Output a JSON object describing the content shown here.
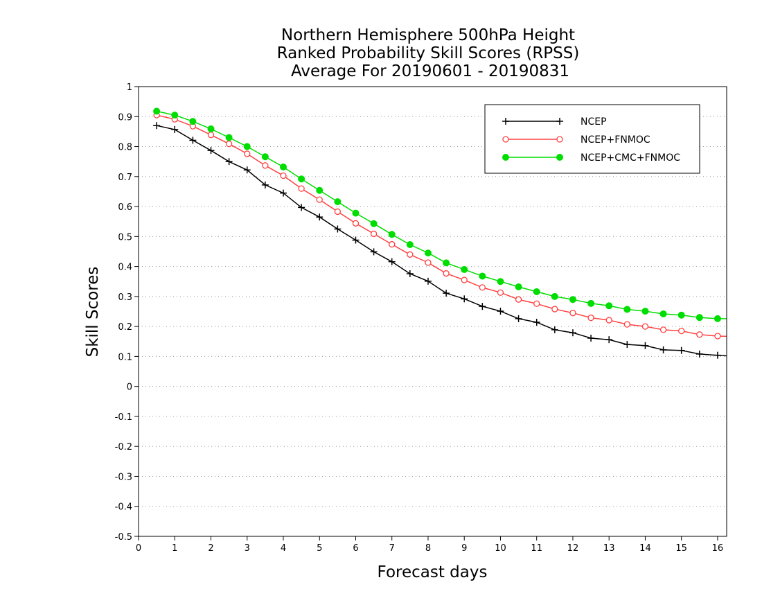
{
  "chart_data": {
    "type": "line",
    "title_lines": [
      "Northern Hemisphere 500hPa Height",
      "Ranked Probability Skill Scores (RPSS)",
      "Average For 20190601 - 20190831"
    ],
    "xlabel": "Forecast days",
    "ylabel": "Skill Scores",
    "xlim": [
      0,
      16.25
    ],
    "ylim": [
      -0.5,
      1
    ],
    "x_ticks": [
      0,
      1,
      2,
      3,
      4,
      5,
      6,
      7,
      8,
      9,
      10,
      11,
      12,
      13,
      14,
      15,
      16
    ],
    "y_ticks": [
      -0.5,
      -0.4,
      -0.3,
      -0.2,
      -0.1,
      0,
      0.1,
      0.2,
      0.3,
      0.4,
      0.5,
      0.6,
      0.7,
      0.8,
      0.9,
      1
    ],
    "y_tick_labels": [
      "-0.5",
      "-0.4",
      "-0.3",
      "-0.2",
      "-0.1",
      "0",
      "0.1",
      "0.2",
      "0.3",
      "0.4",
      "0.5",
      "0.6",
      "0.7",
      "0.8",
      "0.9",
      "1"
    ],
    "grid": "horizontal dotted",
    "legend_position": "top-right",
    "x": [
      0.5,
      1,
      1.5,
      2,
      2.5,
      3,
      3.5,
      4,
      4.5,
      5,
      5.5,
      6,
      6.5,
      7,
      7.5,
      8,
      8.5,
      9,
      9.5,
      10,
      10.5,
      11,
      11.5,
      12,
      12.5,
      13,
      13.5,
      14,
      14.5,
      15,
      15.5,
      16,
      16.25
    ],
    "series": [
      {
        "name": "NCEP",
        "color": "#000000",
        "marker": "plus",
        "values": [
          0.87,
          0.857,
          0.821,
          0.787,
          0.75,
          0.722,
          0.672,
          0.645,
          0.597,
          0.565,
          0.525,
          0.488,
          0.449,
          0.416,
          0.376,
          0.351,
          0.311,
          0.292,
          0.267,
          0.251,
          0.226,
          0.214,
          0.189,
          0.179,
          0.161,
          0.156,
          0.14,
          0.136,
          0.122,
          0.12,
          0.108,
          0.104,
          0.102
        ]
      },
      {
        "name": "NCEP+FNMOC",
        "color": "#ff4040",
        "marker": "open-circle",
        "values": [
          0.905,
          0.891,
          0.868,
          0.839,
          0.809,
          0.776,
          0.737,
          0.703,
          0.66,
          0.623,
          0.583,
          0.544,
          0.509,
          0.474,
          0.44,
          0.413,
          0.377,
          0.355,
          0.33,
          0.313,
          0.29,
          0.276,
          0.258,
          0.245,
          0.229,
          0.221,
          0.207,
          0.2,
          0.189,
          0.185,
          0.173,
          0.168,
          0.167
        ]
      },
      {
        "name": "NCEP+CMC+FNMOC",
        "color": "#00dd00",
        "marker": "filled-circle",
        "values": [
          0.918,
          0.905,
          0.884,
          0.859,
          0.83,
          0.8,
          0.766,
          0.732,
          0.692,
          0.654,
          0.616,
          0.578,
          0.543,
          0.507,
          0.473,
          0.445,
          0.412,
          0.39,
          0.368,
          0.35,
          0.332,
          0.316,
          0.3,
          0.29,
          0.277,
          0.269,
          0.257,
          0.251,
          0.242,
          0.238,
          0.23,
          0.226,
          0.226
        ]
      }
    ]
  }
}
